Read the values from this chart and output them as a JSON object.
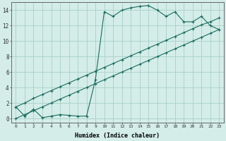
{
  "xlabel": "Humidex (Indice chaleur)",
  "background_color": "#d4ede8",
  "grid_color": "#a8d0c8",
  "line_color": "#1a6b60",
  "xlim": [
    -0.5,
    23.5
  ],
  "ylim": [
    -0.5,
    15.0
  ],
  "xticks": [
    0,
    1,
    2,
    3,
    4,
    5,
    6,
    7,
    8,
    9,
    10,
    11,
    12,
    13,
    14,
    15,
    16,
    17,
    18,
    19,
    20,
    21,
    22,
    23
  ],
  "yticks": [
    0,
    2,
    4,
    6,
    8,
    10,
    12,
    14
  ],
  "line1_x": [
    0,
    1,
    2,
    3,
    4,
    5,
    6,
    7,
    8,
    9,
    10,
    11,
    12,
    13,
    14,
    15,
    16,
    17,
    18,
    19,
    20,
    21,
    22,
    23
  ],
  "line1_y": [
    1.5,
    0.3,
    1.2,
    0.1,
    0.3,
    0.5,
    0.4,
    0.3,
    0.3,
    5.0,
    13.8,
    13.2,
    14.0,
    14.3,
    14.5,
    14.6,
    14.0,
    13.2,
    13.8,
    12.5,
    12.5,
    13.2,
    12.0,
    11.5
  ],
  "line2_x": [
    0,
    1,
    2,
    3,
    4,
    5,
    6,
    7,
    8,
    9,
    10,
    11,
    12,
    13,
    14,
    15,
    16,
    17,
    18,
    19,
    20,
    21,
    22,
    23
  ],
  "line2_y": [
    0.0,
    0.5,
    1.0,
    1.5,
    2.0,
    2.5,
    3.0,
    3.5,
    4.0,
    4.5,
    5.0,
    5.5,
    6.0,
    6.5,
    7.0,
    7.5,
    8.0,
    8.5,
    9.0,
    9.5,
    10.0,
    10.5,
    11.0,
    11.5
  ],
  "line3_x": [
    0,
    1,
    2,
    3,
    4,
    5,
    6,
    7,
    8,
    9,
    10,
    11,
    12,
    13,
    14,
    15,
    16,
    17,
    18,
    19,
    20,
    21,
    22,
    23
  ],
  "line3_y": [
    1.5,
    2.0,
    2.6,
    3.1,
    3.6,
    4.1,
    4.6,
    5.1,
    5.6,
    6.1,
    6.6,
    7.1,
    7.6,
    8.1,
    8.6,
    9.1,
    9.6,
    10.1,
    10.6,
    11.1,
    11.6,
    12.1,
    12.5,
    13.0
  ],
  "xtick_fontsize": 4.5,
  "ytick_fontsize": 5.5,
  "xlabel_fontsize": 6.0
}
